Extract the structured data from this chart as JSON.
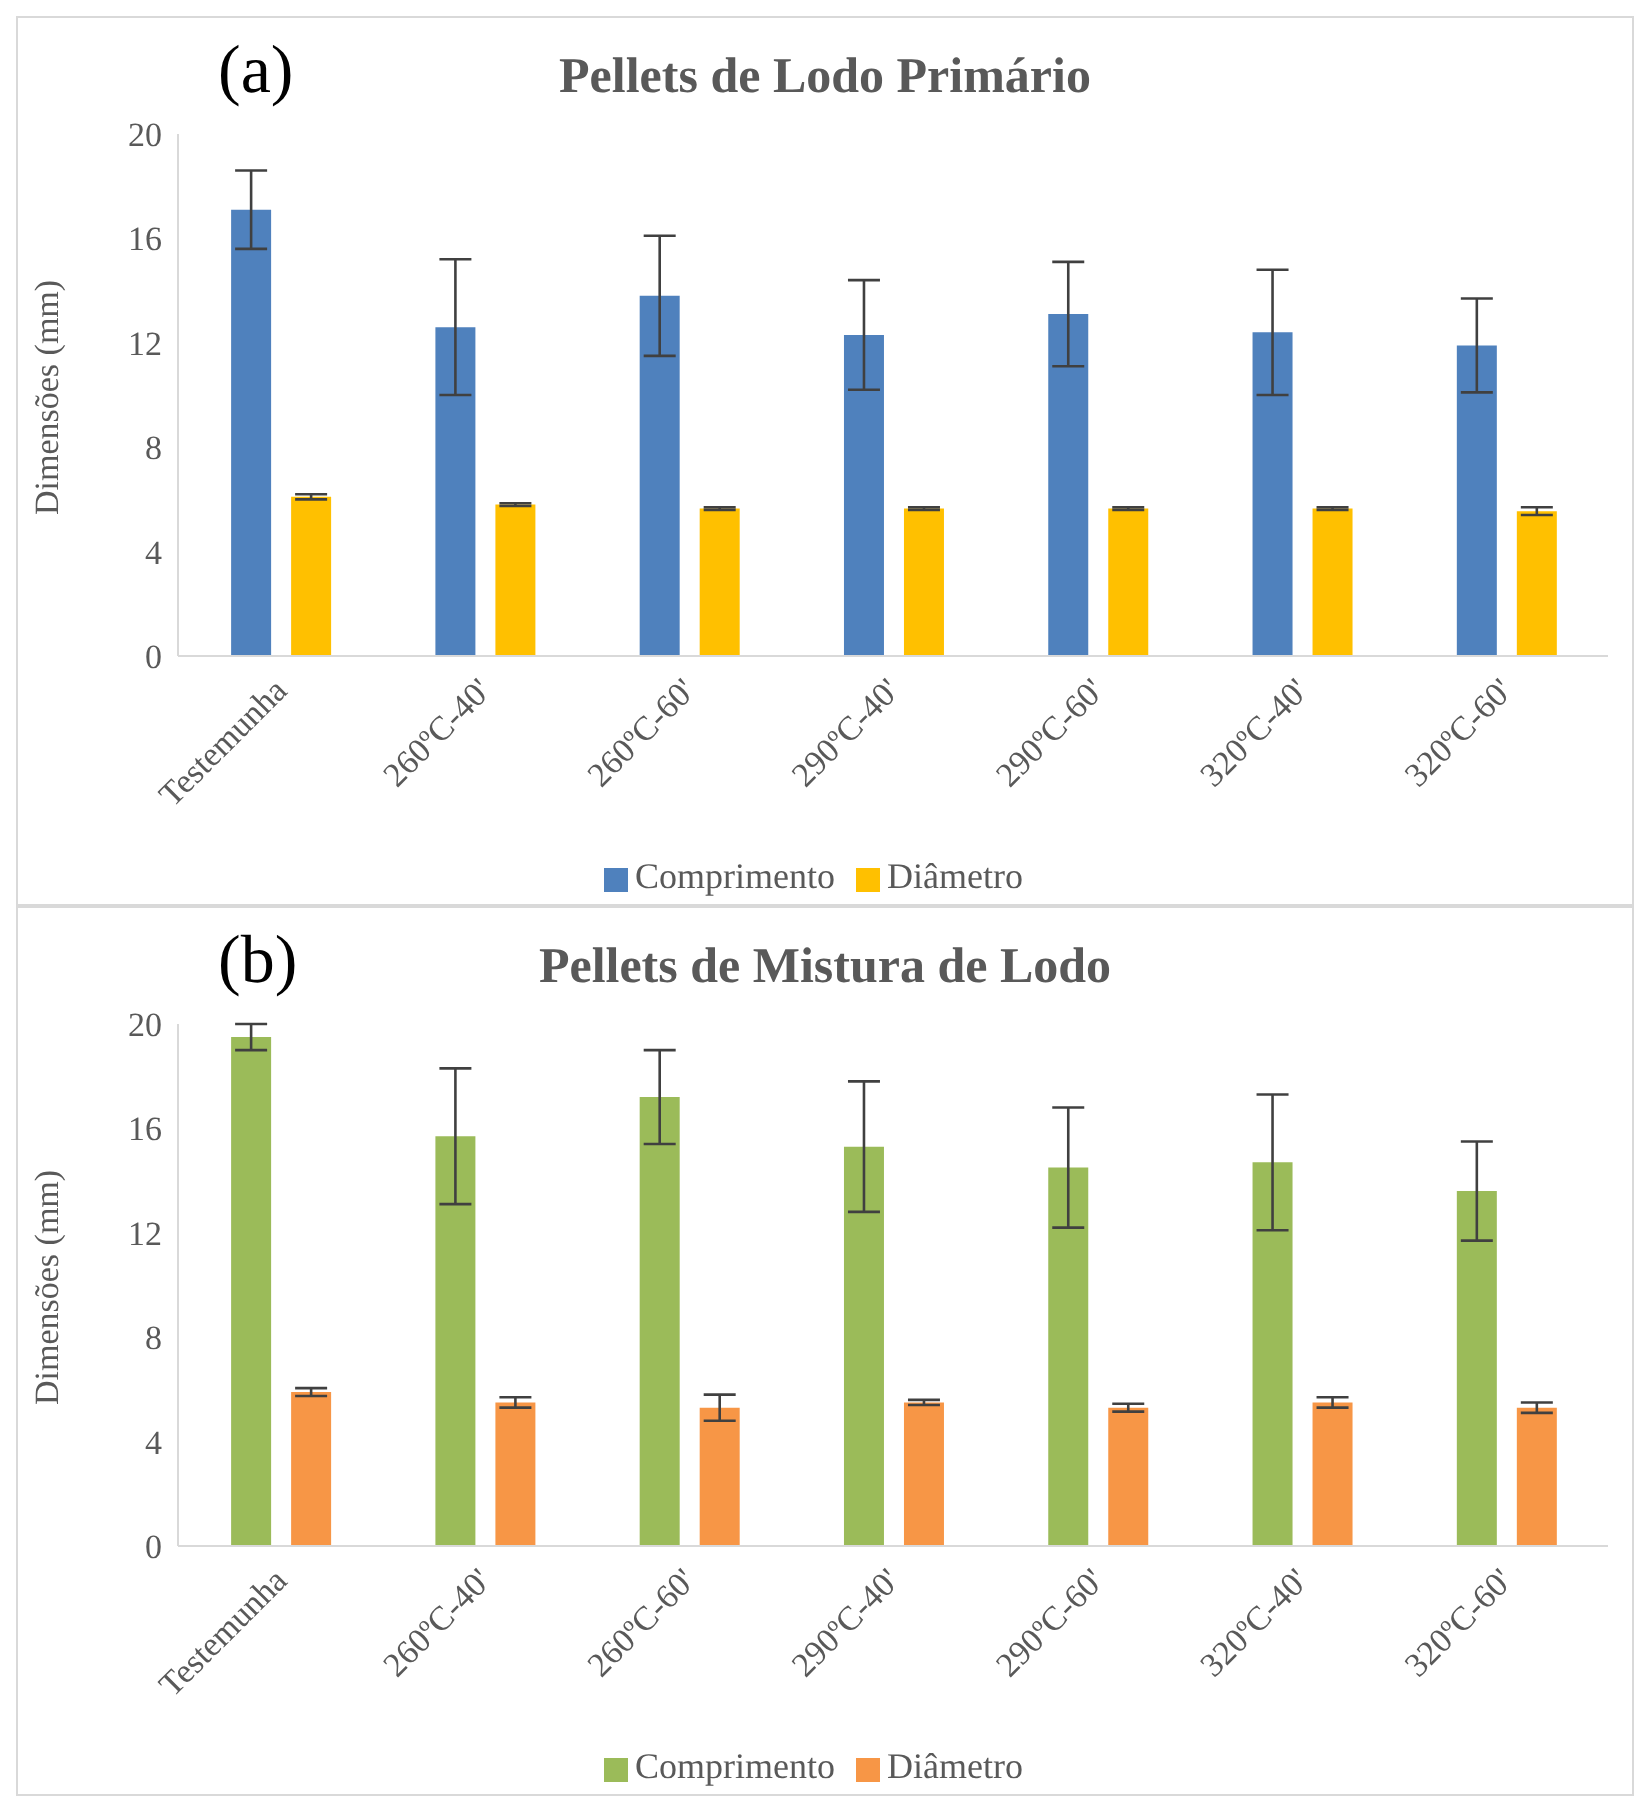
{
  "chart_data": [
    {
      "type": "bar",
      "title": "Pellets de Lodo Primário",
      "annotations": [
        "(a)"
      ],
      "ylabel": "Dimensões (mm)",
      "categories": [
        "Testemunha",
        "260ºC-40'",
        "260ºC-60'",
        "290ºC-40'",
        "290ºC-60'",
        "320ºC-40'",
        "320ºC-60'"
      ],
      "series": [
        {
          "name": "Comprimento",
          "color": "#4f81bd",
          "values": [
            17.1,
            12.6,
            13.8,
            12.3,
            13.1,
            12.4,
            11.9
          ],
          "errors": [
            1.5,
            2.6,
            2.3,
            2.1,
            2.0,
            2.4,
            1.8
          ]
        },
        {
          "name": "Diâmetro",
          "color": "#ffc000",
          "values": [
            6.1,
            5.8,
            5.65,
            5.65,
            5.65,
            5.65,
            5.55
          ],
          "errors": [
            0.1,
            0.05,
            0.05,
            0.05,
            0.05,
            0.05,
            0.15
          ]
        }
      ],
      "ylim": [
        0,
        20
      ],
      "yticks": [
        0,
        4,
        8,
        12,
        16,
        20
      ],
      "grid": false,
      "legend": "bottom"
    },
    {
      "type": "bar",
      "title": "Pellets de Mistura  de Lodo",
      "annotations": [
        "(b)"
      ],
      "ylabel": "Dimensões (mm)",
      "categories": [
        "Testemunha",
        "260ºC-40'",
        "260ºC-60'",
        "290ºC-40'",
        "290ºC-60'",
        "320ºC-40'",
        "320ºC-60'"
      ],
      "series": [
        {
          "name": "Comprimento",
          "color": "#9bbb59",
          "values": [
            19.5,
            15.7,
            17.2,
            15.3,
            14.5,
            14.7,
            13.6
          ],
          "errors": [
            0.5,
            2.6,
            1.8,
            2.5,
            2.3,
            2.6,
            1.9
          ]
        },
        {
          "name": "Diâmetro",
          "color": "#f79646",
          "values": [
            5.9,
            5.5,
            5.3,
            5.5,
            5.3,
            5.5,
            5.3
          ],
          "errors": [
            0.15,
            0.2,
            0.5,
            0.1,
            0.15,
            0.2,
            0.2
          ]
        }
      ],
      "ylim": [
        0,
        20
      ],
      "yticks": [
        0,
        4,
        8,
        12,
        16,
        20
      ],
      "grid": false,
      "legend": "bottom"
    }
  ]
}
